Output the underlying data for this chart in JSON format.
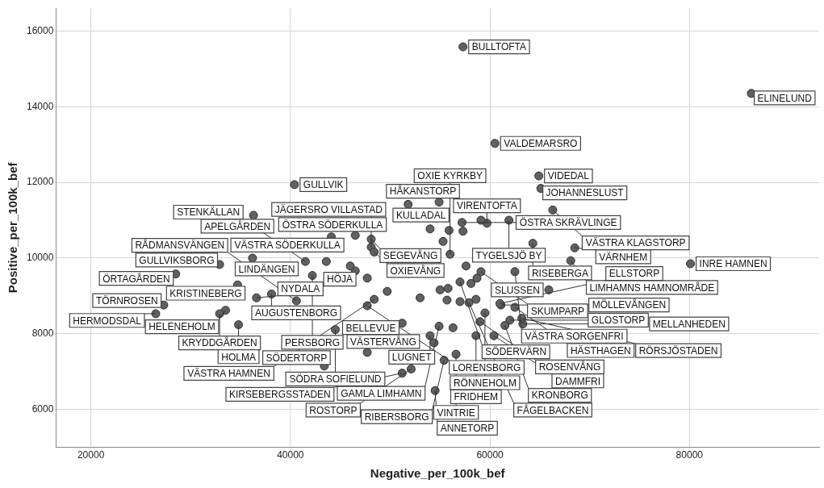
{
  "chart_data": {
    "type": "scatter",
    "xlabel": "Negative_per_100k_bef",
    "ylabel": "Positive_per_100k_bef",
    "xlim": [
      16500,
      93000
    ],
    "xticks": [
      20000,
      40000,
      60000,
      80000
    ],
    "ylim": [
      5000,
      16600
    ],
    "yticks": [
      6000,
      8000,
      10000,
      12000,
      14000,
      16000
    ],
    "grid": true,
    "legend": false,
    "marker": "circle",
    "series": [
      {
        "color": "#616161",
        "x": [
          57300,
          86200,
          60500,
          64900,
          65100,
          40400,
          51800,
          54900,
          57200,
          59700,
          66300,
          61900,
          46500,
          44100,
          48100,
          38100,
          36300,
          48100,
          64300,
          34700,
          36200,
          32900,
          41500,
          48400,
          56000,
          68500,
          68100,
          80100,
          59100,
          62500,
          28500,
          36600,
          42200,
          46500,
          57000,
          65900,
          61100,
          62500,
          27300,
          33500,
          32900,
          26500,
          34800,
          44500,
          47700,
          47700,
          43400,
          59500,
          59000,
          51200,
          54000,
          54900,
          58600,
          60400,
          62000,
          61500,
          63300,
          63200,
          56600,
          55400,
          52100,
          51200,
          54500,
          61000,
          57900,
          48400,
          40600,
          54000,
          55900,
          57300,
          55300,
          43600,
          57600,
          58700,
          58100,
          49700,
          55000,
          55800,
          53000,
          55700,
          57000,
          58600,
          56300,
          59100,
          46000,
          47700,
          54400
        ],
        "values": [
          15580,
          14350,
          13030,
          12170,
          11840,
          11940,
          11420,
          11480,
          10940,
          10920,
          11270,
          11000,
          10600,
          10560,
          10290,
          9050,
          11130,
          10500,
          10390,
          9290,
          10000,
          9830,
          9910,
          10160,
          10100,
          10270,
          9930,
          9850,
          9640,
          9640,
          9580,
          8950,
          9540,
          9660,
          9370,
          9160,
          8760,
          8700,
          8760,
          8620,
          8530,
          8530,
          8240,
          8110,
          8740,
          7510,
          7150,
          8550,
          8320,
          8280,
          7950,
          8200,
          7950,
          7950,
          8360,
          8220,
          8260,
          8410,
          7460,
          7300,
          7070,
          6960,
          6500,
          8800,
          8820,
          8910,
          8870,
          10770,
          10730,
          10710,
          10440,
          9910,
          9790,
          9470,
          9330,
          9120,
          9160,
          9200,
          8950,
          8890,
          8850,
          8910,
          8160,
          11000,
          9790,
          9470,
          7760
        ]
      }
    ],
    "annotations": [
      {
        "text": "BULLTOFTA",
        "x": 57300,
        "y": 15580
      },
      {
        "text": "ELINELUND",
        "x": 86200,
        "y": 14350
      },
      {
        "text": "VALDEMARSRO",
        "x": 60500,
        "y": 13030
      },
      {
        "text": "VIDEDAL",
        "x": 64900,
        "y": 12170
      },
      {
        "text": "JOHANNESLUST",
        "x": 65100,
        "y": 11840
      },
      {
        "text": "GULLVIK",
        "x": 40400,
        "y": 11940
      },
      {
        "text": "KULLADAL",
        "x": 51800,
        "y": 11420
      },
      {
        "text": "HÅKANSTORP",
        "x": 54900,
        "y": 11480
      },
      {
        "text": "ÖSTRA SKRÄVLINGE",
        "x": 57200,
        "y": 10940
      },
      {
        "text": "VIRENTOFTA",
        "x": 59700,
        "y": 10920
      },
      {
        "text": "VÄSTRA KLAGSTORP",
        "x": 66300,
        "y": 11270
      },
      {
        "text": "TYGELSJÖ BY",
        "x": 61900,
        "y": 11000
      },
      {
        "text": "ÖSTRA SÖDERKULLA",
        "x": 46500,
        "y": 10600
      },
      {
        "text": "VÄSTRA SÖDERKULLA",
        "x": 44100,
        "y": 10560
      },
      {
        "text": "JÄGERSRO VILLASTAD",
        "x": 48100,
        "y": 10290
      },
      {
        "text": "AUGUSTENBORG",
        "x": 38100,
        "y": 9050
      },
      {
        "text": "APELGÅRDEN",
        "x": 36300,
        "y": 11130
      },
      {
        "text": "SEGEVÅNG",
        "x": 48100,
        "y": 10500
      },
      {
        "text": "RISEBERGA",
        "x": 64300,
        "y": 10390
      },
      {
        "text": "KRISTINEBERG",
        "x": 34700,
        "y": 9290
      },
      {
        "text": "LINDÄNGEN",
        "x": 36200,
        "y": 10000
      },
      {
        "text": "GULLVIKSBORG",
        "x": 32900,
        "y": 9830
      },
      {
        "text": "STENKÄLLAN",
        "x": 41500,
        "y": 9910
      },
      {
        "text": "OXIEVÅNG",
        "x": 48400,
        "y": 10160
      },
      {
        "text": "OXIE KYRKBY",
        "x": 56000,
        "y": 10100
      },
      {
        "text": "VÄRNHEM",
        "x": 68500,
        "y": 10270
      },
      {
        "text": "LIMHAMNS HAMNOMRÅDE",
        "x": 68100,
        "y": 9930
      },
      {
        "text": "INRE HAMNEN",
        "x": 80100,
        "y": 9850
      },
      {
        "text": "SKUMPARP",
        "x": 59100,
        "y": 9640
      },
      {
        "text": "VÄSTRA SORGENFRI",
        "x": 62500,
        "y": 9640
      },
      {
        "text": "ÖRTAGÅRDEN",
        "x": 28500,
        "y": 9580
      },
      {
        "text": "NYDALA",
        "x": 36600,
        "y": 8950
      },
      {
        "text": "PERSBORG",
        "x": 42200,
        "y": 9540
      },
      {
        "text": "HÖJA",
        "x": 46500,
        "y": 9660
      },
      {
        "text": "SÖDERVÄRN",
        "x": 57000,
        "y": 9370
      },
      {
        "text": "SLUSSEN",
        "x": 65900,
        "y": 9160
      },
      {
        "text": "MÖLLEVÅNGEN",
        "x": 61100,
        "y": 8760
      },
      {
        "text": "HÄSTHAGEN",
        "x": 62500,
        "y": 8700
      },
      {
        "text": "TÖRNROSEN",
        "x": 27300,
        "y": 8760
      },
      {
        "text": "HELENEHOLM",
        "x": 33500,
        "y": 8620
      },
      {
        "text": "KRYDDGÅRDEN",
        "x": 32900,
        "y": 8530
      },
      {
        "text": "HERMODSDAL",
        "x": 26500,
        "y": 8530
      },
      {
        "text": "HOLMA",
        "x": 34800,
        "y": 8240
      },
      {
        "text": "SÖDRA SOFIELUND",
        "x": 44500,
        "y": 8110
      },
      {
        "text": "LORENSBORG",
        "x": 47700,
        "y": 8740
      },
      {
        "text": "VÄSTERVÅNG",
        "x": 47700,
        "y": 7510
      },
      {
        "text": "SÖDERTORP",
        "x": 43400,
        "y": 7150
      },
      {
        "text": "RÖNNEHOLM",
        "x": 59500,
        "y": 8550
      },
      {
        "text": "ROSENVÅNG",
        "x": 59000,
        "y": 8320
      },
      {
        "text": "BELLEVUE",
        "x": 51200,
        "y": 8280
      },
      {
        "text": "LUGNET",
        "x": 54000,
        "y": 7950
      },
      {
        "text": "GAMLA LIMHAMN",
        "x": 54900,
        "y": 8200
      },
      {
        "text": "FRIDHEM",
        "x": 58600,
        "y": 7950
      },
      {
        "text": "DAMMFRI",
        "x": 60400,
        "y": 7950
      },
      {
        "text": "GLOSTORP",
        "x": 62000,
        "y": 8360
      },
      {
        "text": "KRONBORG",
        "x": 61500,
        "y": 8220
      },
      {
        "text": "MELLANHEDEN",
        "x": 63300,
        "y": 8260
      },
      {
        "text": "RÖRSJÖSTADEN",
        "x": 63200,
        "y": 8410
      },
      {
        "text": "VINTRIE",
        "x": 56600,
        "y": 7460
      },
      {
        "text": "RIBERSBORG",
        "x": 55400,
        "y": 7300
      },
      {
        "text": "ROSTORP",
        "x": 52100,
        "y": 7070
      },
      {
        "text": "KIRSEBERGSSTADEN",
        "x": 51200,
        "y": 6960
      },
      {
        "text": "ANNETORP",
        "x": 54500,
        "y": 6500
      },
      {
        "text": "ELLSTORP",
        "x": 61000,
        "y": 8800
      },
      {
        "text": "FÅGELBACKEN",
        "x": 57900,
        "y": 8820
      },
      {
        "text": "VÄSTRA HAMNEN",
        "x": 48400,
        "y": 8910
      },
      {
        "text": "RÅDMANSVÄNGEN",
        "x": 40600,
        "y": 8870
      }
    ]
  }
}
